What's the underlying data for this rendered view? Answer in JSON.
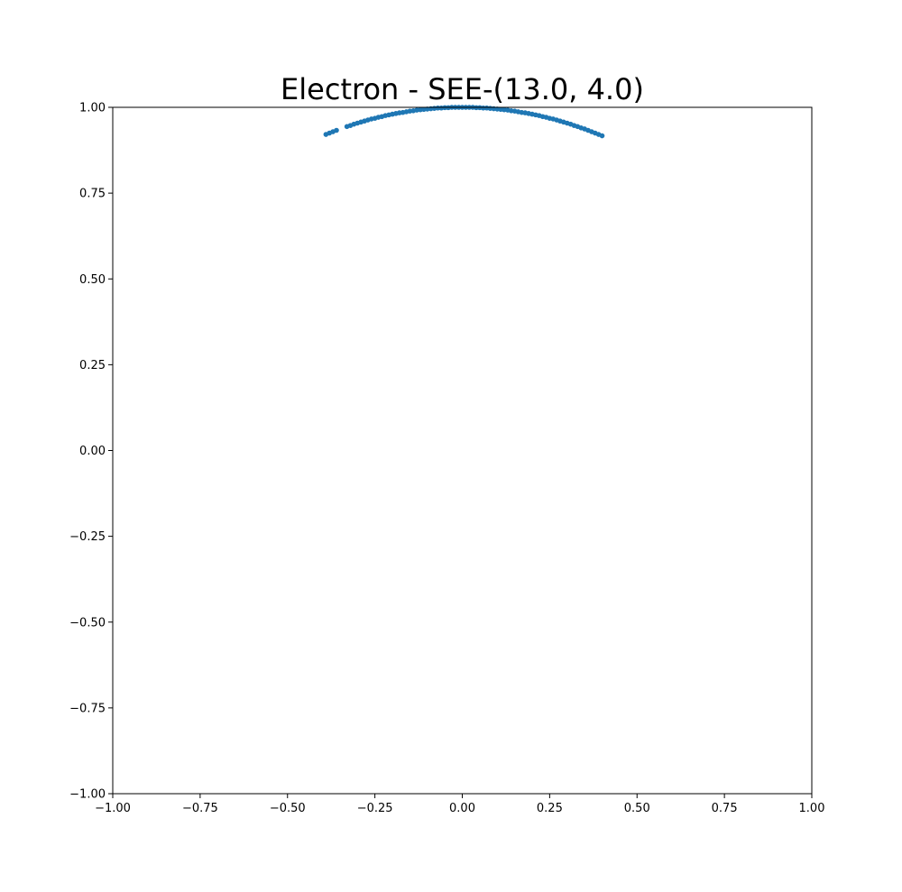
{
  "chart_data": {
    "type": "scatter",
    "title": "Electron - SEE-(13.0, 4.0)",
    "xlabel": "",
    "ylabel": "",
    "xlim": [
      -1.0,
      1.0
    ],
    "ylim": [
      -1.0,
      1.0
    ],
    "x_ticks": [
      -1.0,
      -0.75,
      -0.5,
      -0.25,
      0.0,
      0.25,
      0.5,
      0.75,
      1.0
    ],
    "x_tick_labels": [
      "−1.00",
      "−0.75",
      "−0.50",
      "−0.25",
      "0.00",
      "0.25",
      "0.50",
      "0.75",
      "1.00"
    ],
    "y_ticks": [
      -1.0,
      -0.75,
      -0.5,
      -0.25,
      0.0,
      0.25,
      0.5,
      0.75,
      1.0
    ],
    "y_tick_labels": [
      "−1.00",
      "−0.75",
      "−0.50",
      "−0.25",
      "0.00",
      "0.25",
      "0.50",
      "0.75",
      "1.00"
    ],
    "grid": false,
    "legend": "none",
    "marker_color": "#1f77b4",
    "series": [
      {
        "x": [
          -0.39,
          -0.38,
          -0.37,
          -0.36,
          -0.33,
          -0.32,
          -0.31,
          -0.3,
          -0.29,
          -0.28,
          -0.27,
          -0.26,
          -0.25,
          -0.24,
          -0.23,
          -0.22,
          -0.21,
          -0.2,
          -0.19,
          -0.18,
          -0.17,
          -0.16,
          -0.15,
          -0.14,
          -0.13,
          -0.12,
          -0.11,
          -0.1,
          -0.09,
          -0.08,
          -0.07,
          -0.06,
          -0.05,
          -0.04,
          -0.03,
          -0.02,
          -0.01,
          0.0,
          0.01,
          0.02,
          0.03,
          0.04,
          0.05,
          0.06,
          0.07,
          0.08,
          0.09,
          0.1,
          0.11,
          0.12,
          0.13,
          0.14,
          0.15,
          0.16,
          0.17,
          0.18,
          0.19,
          0.2,
          0.21,
          0.22,
          0.23,
          0.24,
          0.25,
          0.26,
          0.27,
          0.28,
          0.29,
          0.3,
          0.31,
          0.32,
          0.33,
          0.34,
          0.35,
          0.36,
          0.37,
          0.38,
          0.39,
          0.4
        ],
        "y": [
          0.921,
          0.925,
          0.929,
          0.933,
          0.944,
          0.947,
          0.951,
          0.954,
          0.957,
          0.96,
          0.963,
          0.966,
          0.968,
          0.971,
          0.973,
          0.976,
          0.978,
          0.98,
          0.982,
          0.984,
          0.985,
          0.987,
          0.989,
          0.99,
          0.992,
          0.993,
          0.994,
          0.995,
          0.996,
          0.997,
          0.998,
          0.998,
          0.999,
          0.999,
          1.0,
          1.0,
          1.0,
          1.0,
          1.0,
          1.0,
          1.0,
          0.999,
          0.999,
          0.998,
          0.998,
          0.997,
          0.996,
          0.995,
          0.994,
          0.993,
          0.992,
          0.99,
          0.989,
          0.987,
          0.985,
          0.984,
          0.982,
          0.98,
          0.978,
          0.976,
          0.973,
          0.971,
          0.968,
          0.966,
          0.963,
          0.96,
          0.957,
          0.954,
          0.951,
          0.947,
          0.944,
          0.94,
          0.937,
          0.933,
          0.929,
          0.925,
          0.921,
          0.917
        ]
      }
    ]
  }
}
